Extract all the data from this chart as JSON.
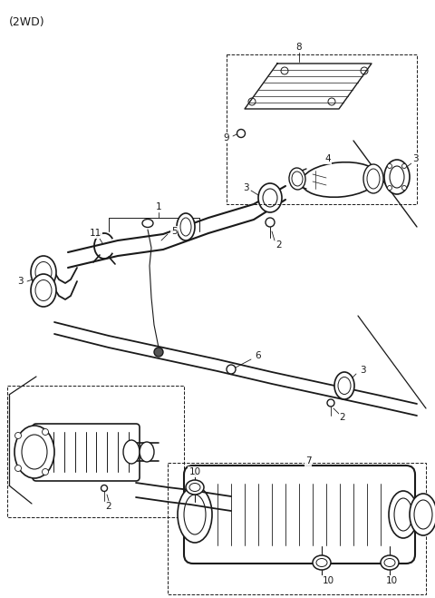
{
  "title": "(2WD)",
  "bg_color": "#ffffff",
  "line_color": "#1a1a1a",
  "fig_width": 4.8,
  "fig_height": 6.59,
  "dpi": 100,
  "label_fontsize": 7.5,
  "title_fontsize": 9
}
